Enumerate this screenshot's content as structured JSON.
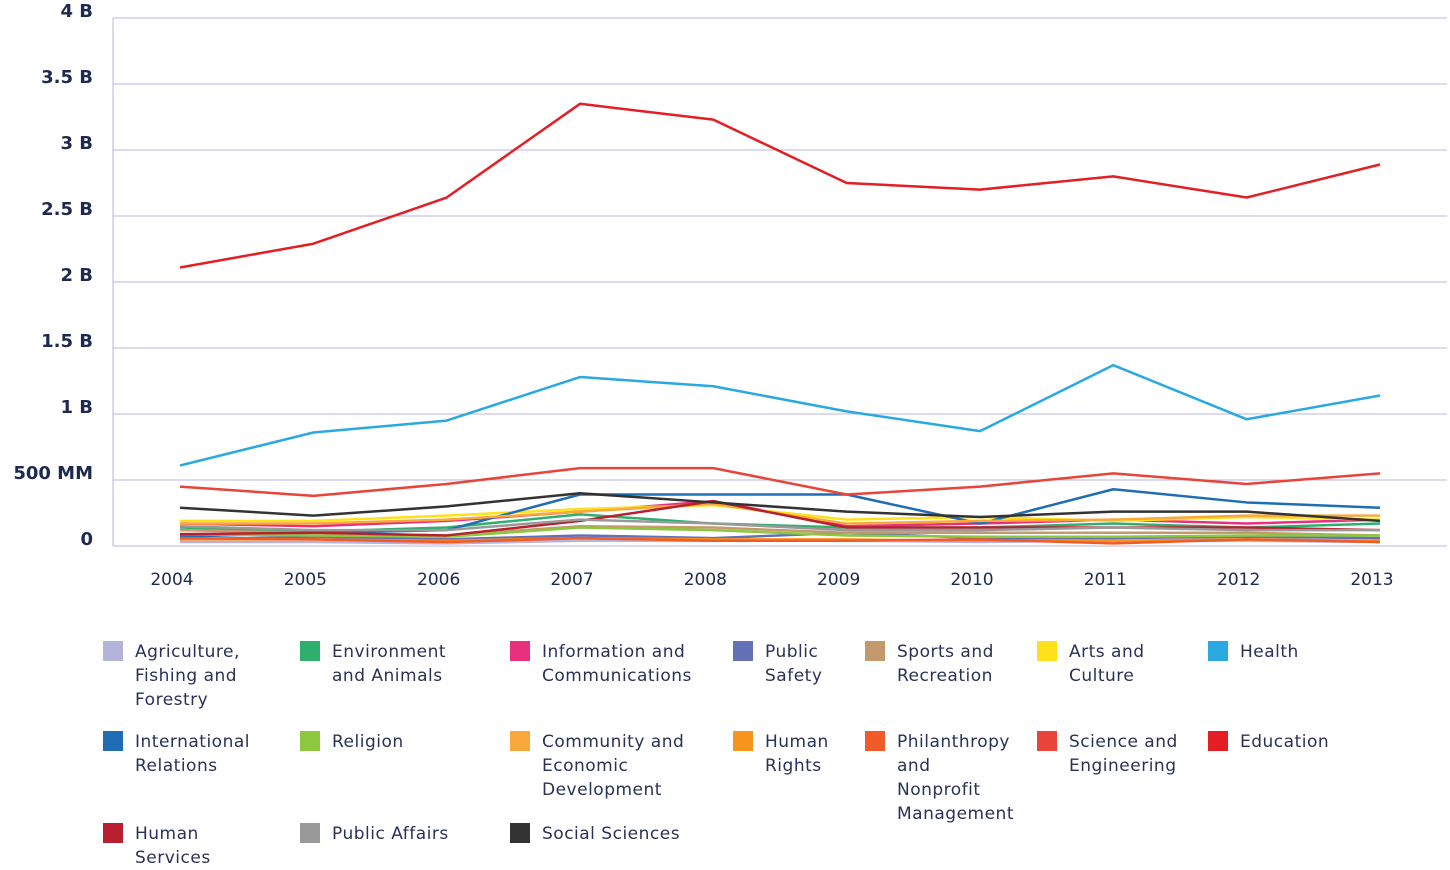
{
  "chart_data": {
    "type": "line",
    "categories": [
      "2004",
      "2005",
      "2006",
      "2007",
      "2008",
      "2009",
      "2010",
      "2011",
      "2012",
      "2013"
    ],
    "ylim": [
      0,
      4
    ],
    "yticks": [
      0,
      {
        "value": 0.5,
        "label": "500 MM"
      },
      {
        "value": 1,
        "label": "1 B"
      },
      {
        "value": 1.5,
        "label": "1.5 B"
      },
      {
        "value": 2,
        "label": "2 B"
      },
      {
        "value": 2.5,
        "label": "2.5 B"
      },
      {
        "value": 3,
        "label": "3 B"
      },
      {
        "value": 3.5,
        "label": "3.5 B"
      },
      {
        "value": 4,
        "label": "4 B"
      }
    ],
    "grid": true,
    "series": [
      {
        "name": "Agriculture, Fishing and Forestry",
        "color": "#b3b3dc",
        "values": [
          0.03,
          0.03,
          0.02,
          0.04,
          0.04,
          0.04,
          0.03,
          0.04,
          0.04,
          0.03
        ]
      },
      {
        "name": "Environment and Animals",
        "color": "#2eaf6e",
        "values": [
          0.14,
          0.11,
          0.14,
          0.24,
          0.17,
          0.14,
          0.14,
          0.17,
          0.14,
          0.17
        ]
      },
      {
        "name": "Information and Communications",
        "color": "#e8307e",
        "values": [
          0.17,
          0.15,
          0.19,
          0.26,
          0.34,
          0.15,
          0.17,
          0.2,
          0.17,
          0.2
        ]
      },
      {
        "name": "Public Safety",
        "color": "#6470b5",
        "values": [
          0.05,
          0.07,
          0.05,
          0.08,
          0.06,
          0.1,
          0.06,
          0.06,
          0.07,
          0.06
        ]
      },
      {
        "name": "Sports and Recreation",
        "color": "#c49a6c",
        "values": [
          0.12,
          0.1,
          0.08,
          0.15,
          0.14,
          0.1,
          0.1,
          0.1,
          0.1,
          0.08
        ]
      },
      {
        "name": "Arts and Culture",
        "color": "#ffe01a",
        "values": [
          0.19,
          0.19,
          0.23,
          0.28,
          0.31,
          0.2,
          0.22,
          0.19,
          0.22,
          0.2
        ]
      },
      {
        "name": "Health",
        "color": "#29a9e0",
        "values": [
          0.61,
          0.86,
          0.95,
          1.28,
          1.21,
          1.02,
          0.87,
          1.37,
          0.96,
          1.14
        ]
      },
      {
        "name": "International Relations",
        "color": "#1f6eb5",
        "values": [
          0.07,
          0.1,
          0.12,
          0.39,
          0.39,
          0.39,
          0.17,
          0.43,
          0.33,
          0.29
        ]
      },
      {
        "name": "Religion",
        "color": "#8dc63f",
        "values": [
          0.09,
          0.08,
          0.07,
          0.14,
          0.12,
          0.08,
          0.07,
          0.07,
          0.08,
          0.08
        ]
      },
      {
        "name": "Community and Economic Development",
        "color": "#f9a93b",
        "values": [
          0.17,
          0.17,
          0.2,
          0.26,
          0.32,
          0.17,
          0.19,
          0.2,
          0.23,
          0.23
        ]
      },
      {
        "name": "Human Rights",
        "color": "#f7941d",
        "values": [
          0.05,
          0.05,
          0.04,
          0.06,
          0.05,
          0.05,
          0.04,
          0.04,
          0.05,
          0.04
        ]
      },
      {
        "name": "Philanthropy and Nonprofit Management",
        "color": "#f15a29",
        "values": [
          0.06,
          0.05,
          0.03,
          0.06,
          0.04,
          0.04,
          0.05,
          0.02,
          0.05,
          0.03
        ]
      },
      {
        "name": "Science and Engineering",
        "color": "#e8443a",
        "values": [
          0.45,
          0.38,
          0.47,
          0.59,
          0.59,
          0.39,
          0.45,
          0.55,
          0.47,
          0.55
        ]
      },
      {
        "name": "Education",
        "color": "#e31e24",
        "values": [
          2.11,
          2.29,
          2.64,
          3.35,
          3.23,
          2.75,
          2.7,
          2.8,
          2.64,
          2.89
        ]
      },
      {
        "name": "Human Services",
        "color": "#b8202e",
        "values": [
          0.09,
          0.1,
          0.08,
          0.19,
          0.34,
          0.14,
          0.14,
          0.14,
          0.14,
          0.12
        ]
      },
      {
        "name": "Public Affairs",
        "color": "#999999",
        "values": [
          0.15,
          0.12,
          0.12,
          0.2,
          0.17,
          0.12,
          0.12,
          0.14,
          0.12,
          0.12
        ]
      },
      {
        "name": "Social Sciences",
        "color": "#333333",
        "values": [
          0.29,
          0.23,
          0.3,
          0.4,
          0.33,
          0.26,
          0.22,
          0.26,
          0.26,
          0.19
        ]
      }
    ]
  }
}
